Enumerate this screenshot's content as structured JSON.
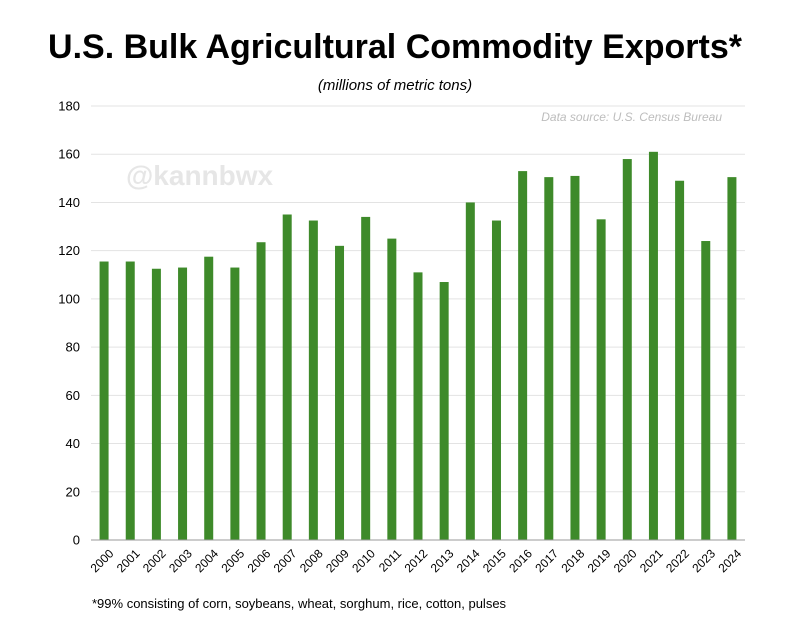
{
  "chart_data": {
    "type": "bar",
    "title": "U.S. Bulk Agricultural Commodity Exports*",
    "subtitle": "(millions of metric tons)",
    "source": "Data source: U.S. Census Bureau",
    "watermark": "@kannbwx",
    "footnote": "*99% consisting of corn, soybeans, wheat, sorghum, rice, cotton, pulses",
    "xlabel": "",
    "ylabel": "",
    "ylim": [
      0,
      180
    ],
    "yticks": [
      0,
      20,
      40,
      60,
      80,
      100,
      120,
      140,
      160,
      180
    ],
    "grid": true,
    "bar_color": "#3e8a2a",
    "categories": [
      "2000",
      "2001",
      "2002",
      "2003",
      "2004",
      "2005",
      "2006",
      "2007",
      "2008",
      "2009",
      "2010",
      "2011",
      "2012",
      "2013",
      "2014",
      "2015",
      "2016",
      "2017",
      "2018",
      "2019",
      "2020",
      "2021",
      "2022",
      "2023",
      "2024"
    ],
    "values": [
      115.5,
      115.5,
      112.5,
      113,
      117.5,
      113,
      123.5,
      135,
      132.5,
      122,
      134,
      125,
      111,
      107,
      140,
      132.5,
      153,
      150.5,
      151,
      133,
      158,
      161,
      149,
      124,
      150.5
    ]
  }
}
